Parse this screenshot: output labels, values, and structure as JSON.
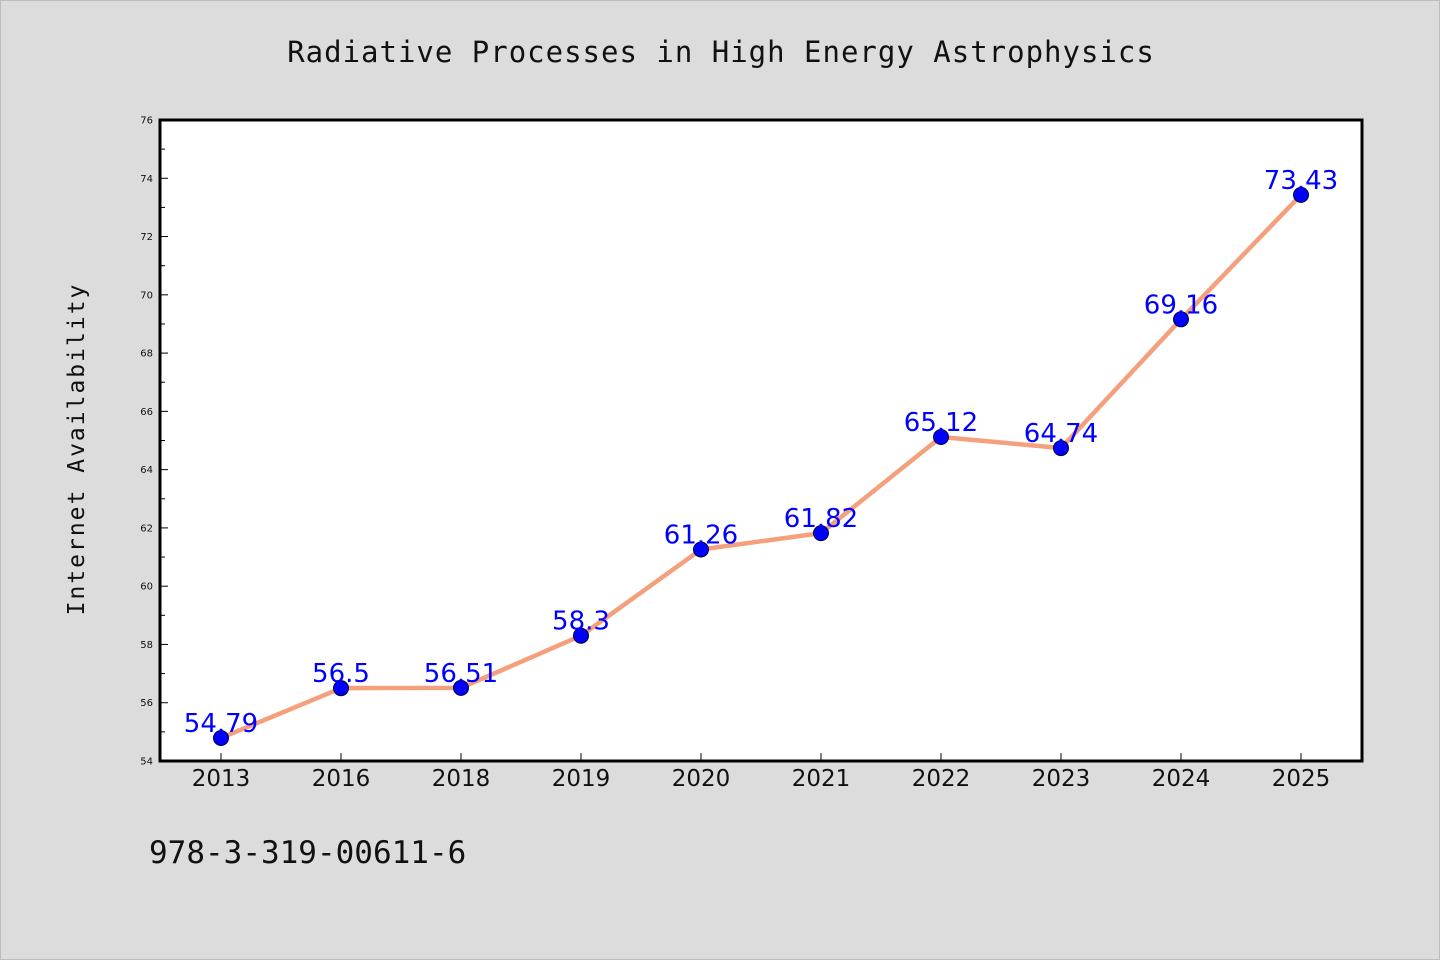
{
  "chart_data": {
    "type": "line",
    "title": "Radiative Processes in High Energy Astrophysics",
    "xlabel": "",
    "ylabel": "Internet Availability",
    "categories": [
      "2013",
      "2016",
      "2018",
      "2019",
      "2020",
      "2021",
      "2022",
      "2023",
      "2024",
      "2025"
    ],
    "series": [
      {
        "values": [
          54.79,
          56.5,
          56.51,
          58.3,
          61.26,
          61.82,
          65.12,
          64.74,
          69.16,
          73.43
        ],
        "data_labels": [
          "54.79",
          "56.5",
          "56.51",
          "58.3",
          "61.26",
          "61.82",
          "65.12",
          "64.74",
          "69.16",
          "73.43"
        ],
        "line_color": "#f4a07c",
        "marker_color": "#0000ff"
      }
    ],
    "ylim": [
      54,
      76
    ],
    "yticks": [
      "54",
      "56",
      "58",
      "60",
      "62",
      "64",
      "66",
      "68",
      "70",
      "72",
      "74",
      "76"
    ],
    "grid": false,
    "legend": "none"
  },
  "footer_text": "978-3-319-00611-6",
  "colors": {
    "background": "#dcdcdc",
    "plot_background": "#ffffff",
    "line": "#f4a07c",
    "marker": "#0000ff",
    "data_label": "#0000ff"
  }
}
